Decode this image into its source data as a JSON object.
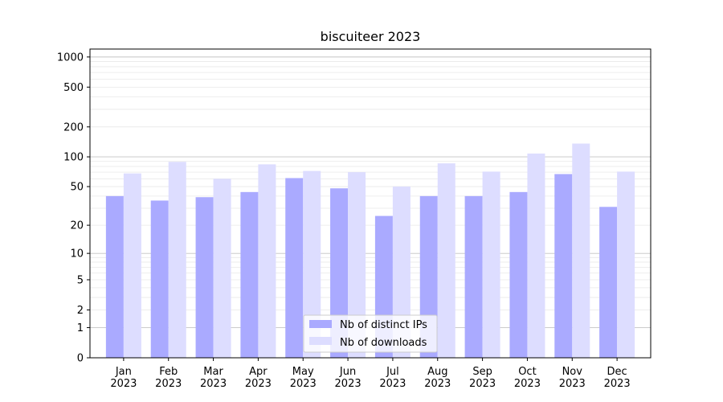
{
  "chart_data": {
    "type": "bar",
    "title": "biscuiteer 2023",
    "xlabel": "",
    "ylabel": "",
    "y_scale": "symlog",
    "ylim": [
      0,
      1200
    ],
    "y_ticks": [
      0,
      1,
      2,
      5,
      10,
      20,
      50,
      100,
      200,
      500,
      1000
    ],
    "grid": true,
    "legend_position": "lower-center",
    "categories": [
      "Jan\n2023",
      "Feb\n2023",
      "Mar\n2023",
      "Apr\n2023",
      "May\n2023",
      "Jun\n2023",
      "Jul\n2023",
      "Aug\n2023",
      "Sep\n2023",
      "Oct\n2023",
      "Nov\n2023",
      "Dec\n2023"
    ],
    "series": [
      {
        "name": "Nb of distinct IPs",
        "color": "#aaaaff",
        "values": [
          40,
          36,
          39,
          44,
          61,
          48,
          25,
          40,
          40,
          44,
          67,
          31
        ]
      },
      {
        "name": "Nb of downloads",
        "color": "#ddddff",
        "values": [
          68,
          89,
          60,
          84,
          72,
          70,
          50,
          86,
          71,
          108,
          136,
          71
        ]
      }
    ]
  }
}
